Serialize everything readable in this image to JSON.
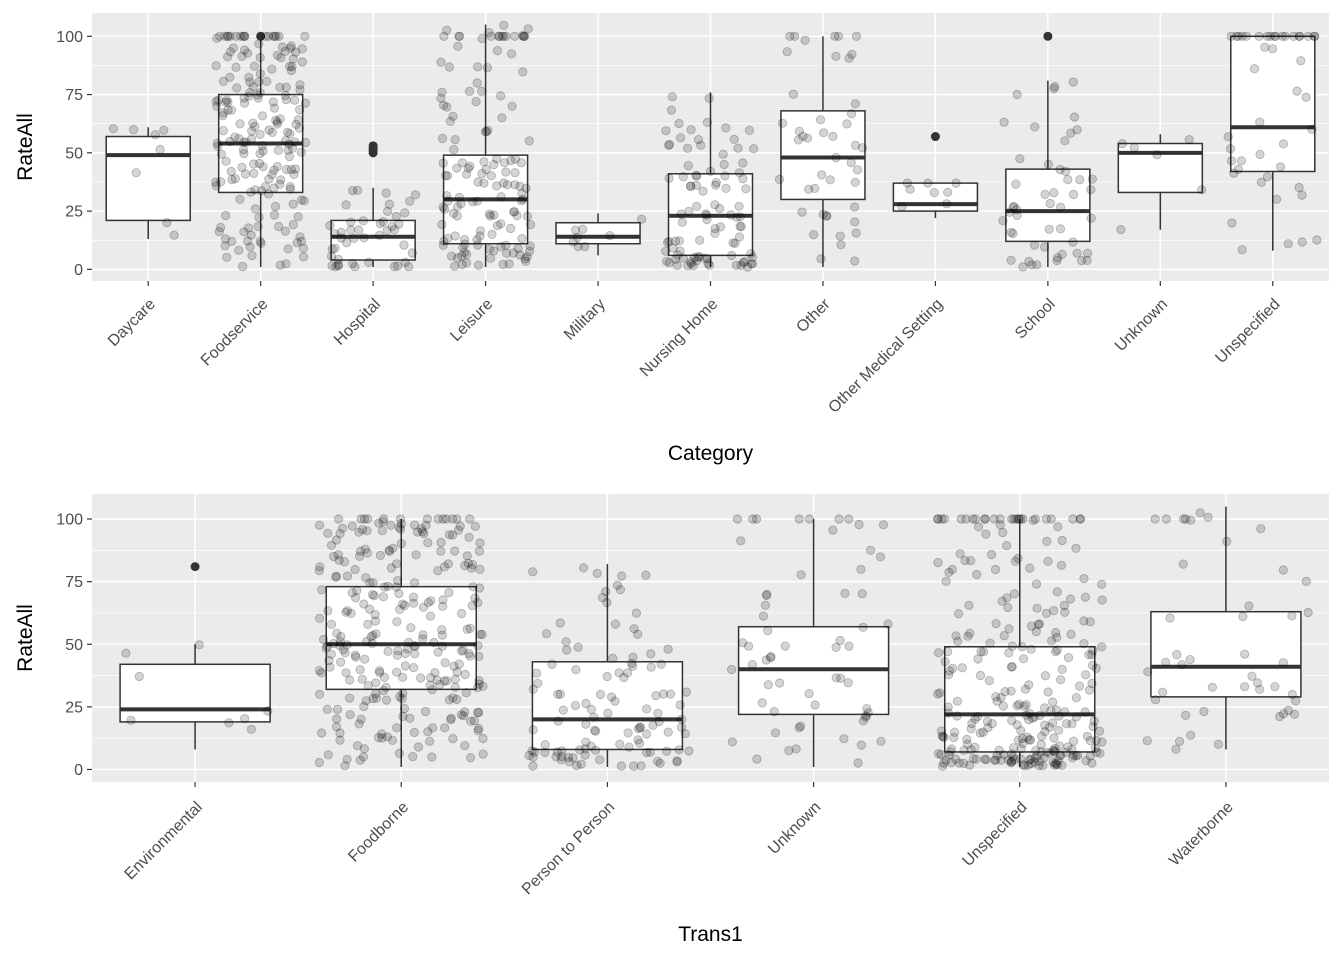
{
  "chart_data": [
    {
      "type": "box",
      "xlabel": "Category",
      "ylabel": "RateAll",
      "yticks": [
        0,
        25,
        50,
        75,
        100
      ],
      "ylim": [
        -5,
        110
      ],
      "grid": true,
      "categories": [
        "Daycare",
        "Foodservice",
        "Hospital",
        "Leisure",
        "Military",
        "Nursing Home",
        "Other",
        "Other Medical Setting",
        "School",
        "Unknown",
        "Unspecified"
      ],
      "boxes": [
        {
          "q1": 21,
          "median": 49,
          "q3": 57,
          "whisker_low": 13,
          "whisker_high": 61,
          "outliers": []
        },
        {
          "q1": 33,
          "median": 54,
          "q3": 75,
          "whisker_low": 1,
          "whisker_high": 100,
          "outliers": [
            100
          ]
        },
        {
          "q1": 4,
          "median": 14,
          "q3": 21,
          "whisker_low": 1,
          "whisker_high": 35,
          "outliers": [
            50,
            51,
            52,
            53
          ]
        },
        {
          "q1": 11,
          "median": 30,
          "q3": 49,
          "whisker_low": 1,
          "whisker_high": 105,
          "outliers": []
        },
        {
          "q1": 11,
          "median": 14,
          "q3": 20,
          "whisker_low": 6,
          "whisker_high": 24,
          "outliers": []
        },
        {
          "q1": 6,
          "median": 23,
          "q3": 41,
          "whisker_low": 1,
          "whisker_high": 76,
          "outliers": []
        },
        {
          "q1": 30,
          "median": 48,
          "q3": 68,
          "whisker_low": 1,
          "whisker_high": 100,
          "outliers": []
        },
        {
          "q1": 25,
          "median": 28,
          "q3": 37,
          "whisker_low": 22,
          "whisker_high": 37,
          "outliers": [
            57
          ]
        },
        {
          "q1": 12,
          "median": 25,
          "q3": 43,
          "whisker_low": 1,
          "whisker_high": 81,
          "outliers": [
            100
          ]
        },
        {
          "q1": 33,
          "median": 50,
          "q3": 54,
          "whisker_low": 17,
          "whisker_high": 58,
          "outliers": []
        },
        {
          "q1": 42,
          "median": 61,
          "q3": 100,
          "whisker_low": 8,
          "whisker_high": 100,
          "outliers": []
        }
      ],
      "jitter_counts": [
        8,
        190,
        45,
        140,
        8,
        95,
        45,
        8,
        50,
        6,
        45
      ]
    },
    {
      "type": "box",
      "xlabel": "Trans1",
      "ylabel": "RateAll",
      "yticks": [
        0,
        25,
        50,
        75,
        100
      ],
      "ylim": [
        -5,
        110
      ],
      "grid": true,
      "categories": [
        "Environmental",
        "Foodborne",
        "Person to Person",
        "Unknown",
        "Unspecified",
        "Waterborne"
      ],
      "boxes": [
        {
          "q1": 19,
          "median": 24,
          "q3": 42,
          "whisker_low": 8,
          "whisker_high": 50,
          "outliers": [
            81
          ]
        },
        {
          "q1": 32,
          "median": 50,
          "q3": 73,
          "whisker_low": 1,
          "whisker_high": 100,
          "outliers": []
        },
        {
          "q1": 8,
          "median": 20,
          "q3": 43,
          "whisker_low": 1,
          "whisker_high": 82,
          "outliers": []
        },
        {
          "q1": 22,
          "median": 40,
          "q3": 57,
          "whisker_low": 1,
          "whisker_high": 100,
          "outliers": []
        },
        {
          "q1": 7,
          "median": 22,
          "q3": 49,
          "whisker_low": 1,
          "whisker_high": 100,
          "outliers": []
        },
        {
          "q1": 29,
          "median": 41,
          "q3": 63,
          "whisker_low": 8,
          "whisker_high": 105,
          "outliers": []
        }
      ],
      "jitter_counts": [
        8,
        280,
        110,
        60,
        280,
        45
      ]
    }
  ]
}
